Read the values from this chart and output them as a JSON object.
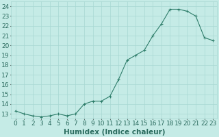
{
  "x": [
    0,
    1,
    2,
    3,
    4,
    5,
    6,
    7,
    8,
    9,
    10,
    11,
    12,
    13,
    14,
    15,
    16,
    17,
    18,
    19,
    20,
    21,
    22,
    23
  ],
  "y": [
    13.3,
    13.0,
    12.8,
    12.7,
    12.8,
    13.0,
    12.8,
    13.0,
    14.0,
    14.3,
    14.3,
    14.8,
    16.5,
    18.5,
    19.0,
    19.5,
    21.0,
    22.2,
    23.7,
    23.7,
    23.5,
    23.0,
    20.8,
    20.5
  ],
  "line_color": "#2e7d6a",
  "marker_color": "#2e7d6a",
  "bg_color": "#c5ebe6",
  "grid_color": "#a8d8d2",
  "xlabel": "Humidex (Indice chaleur)",
  "ylim": [
    12.5,
    24.5
  ],
  "xlim": [
    -0.5,
    23.5
  ],
  "yticks": [
    13,
    14,
    15,
    16,
    17,
    18,
    19,
    20,
    21,
    22,
    23,
    24
  ],
  "ytick_labels": [
    "13",
    "14",
    "15",
    "16",
    "17",
    "18",
    "19",
    "20",
    "21",
    "22",
    "23",
    "24"
  ],
  "xtick_labels": [
    "0",
    "1",
    "2",
    "3",
    "4",
    "5",
    "6",
    "7",
    "8",
    "9",
    "10",
    "11",
    "12",
    "13",
    "14",
    "15",
    "16",
    "17",
    "18",
    "19",
    "20",
    "21",
    "22",
    "23"
  ],
  "font_color": "#2a6b5e",
  "xlabel_fontsize": 7.5,
  "tick_fontsize": 6.5,
  "line_width": 0.8,
  "marker_size": 3.0
}
